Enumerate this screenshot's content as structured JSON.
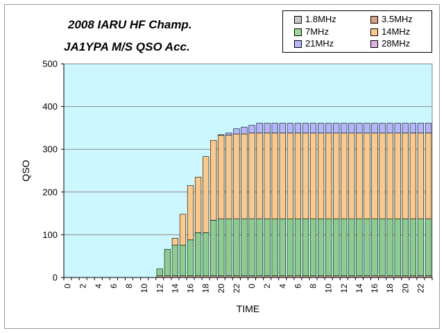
{
  "chart_data": {
    "type": "bar",
    "stacked": true,
    "title": [
      "2008 IARU HF Champ.",
      "JA1YPA  M/S  QSO Acc."
    ],
    "xlabel": "TIME",
    "ylabel": "QSO",
    "ylim": [
      0,
      500
    ],
    "yticks": [
      0,
      100,
      200,
      300,
      400,
      500
    ],
    "grid": true,
    "legend_position": "top-right",
    "categories": [
      "0",
      "1",
      "2",
      "3",
      "4",
      "5",
      "6",
      "7",
      "8",
      "9",
      "10",
      "11",
      "12",
      "13",
      "14",
      "15",
      "16",
      "17",
      "18",
      "19",
      "20",
      "21",
      "22",
      "23",
      "0",
      "1",
      "2",
      "3",
      "4",
      "5",
      "6",
      "7",
      "8",
      "9",
      "10",
      "11",
      "12",
      "13",
      "14",
      "15",
      "16",
      "17",
      "18",
      "19",
      "20",
      "21",
      "22",
      "23"
    ],
    "xtick_labels": [
      "0",
      "",
      "2",
      "",
      "4",
      "",
      "6",
      "",
      "8",
      "",
      "10",
      "",
      "12",
      "",
      "14",
      "",
      "16",
      "",
      "18",
      "",
      "20",
      "",
      "22",
      "",
      "0",
      "",
      "2",
      "",
      "4",
      "",
      "6",
      "",
      "8",
      "",
      "10",
      "",
      "12",
      "",
      "14",
      "",
      "16",
      "",
      "18",
      "",
      "20",
      "",
      "22",
      ""
    ],
    "series": [
      {
        "name": "1.8MHz",
        "color": "#c8c8c8",
        "values": [
          0,
          0,
          0,
          0,
          0,
          0,
          0,
          0,
          0,
          0,
          0,
          0,
          0,
          0,
          0,
          0,
          0,
          0,
          0,
          0,
          0,
          0,
          0,
          0,
          0,
          0,
          0,
          0,
          0,
          0,
          0,
          0,
          0,
          0,
          0,
          0,
          0,
          0,
          0,
          0,
          0,
          0,
          0,
          0,
          0,
          0,
          0,
          0
        ]
      },
      {
        "name": "3.5MHz",
        "color": "#d9a183",
        "values": [
          0,
          0,
          0,
          0,
          0,
          0,
          0,
          0,
          0,
          0,
          0,
          0,
          4,
          4,
          4,
          4,
          4,
          4,
          4,
          4,
          4,
          4,
          4,
          4,
          4,
          4,
          4,
          4,
          4,
          4,
          4,
          4,
          4,
          4,
          4,
          4,
          4,
          4,
          4,
          4,
          4,
          4,
          4,
          4,
          4,
          4,
          4,
          4
        ]
      },
      {
        "name": "7MHz",
        "color": "#98d898",
        "values": [
          0,
          0,
          0,
          0,
          0,
          0,
          0,
          0,
          0,
          0,
          0,
          0,
          16,
          62,
          72,
          72,
          84,
          101,
          101,
          130,
          133,
          133,
          133,
          133,
          133,
          133,
          133,
          133,
          133,
          133,
          133,
          133,
          133,
          133,
          133,
          133,
          133,
          133,
          133,
          133,
          133,
          133,
          133,
          133,
          133,
          133,
          133,
          133
        ]
      },
      {
        "name": "14MHz",
        "color": "#ffc888",
        "values": [
          0,
          0,
          0,
          0,
          0,
          0,
          0,
          0,
          0,
          0,
          0,
          0,
          0,
          0,
          16,
          72,
          127,
          130,
          178,
          187,
          196,
          196,
          199,
          199,
          201,
          201,
          201,
          201,
          201,
          201,
          201,
          201,
          201,
          201,
          201,
          201,
          201,
          201,
          201,
          201,
          201,
          201,
          201,
          201,
          201,
          201,
          201,
          201
        ]
      },
      {
        "name": "21MHz",
        "color": "#b4b4ff",
        "values": [
          0,
          0,
          0,
          0,
          0,
          0,
          0,
          0,
          0,
          0,
          0,
          0,
          0,
          0,
          0,
          0,
          0,
          0,
          0,
          0,
          1,
          5,
          12,
          16,
          18,
          23,
          23,
          23,
          23,
          23,
          23,
          23,
          23,
          23,
          23,
          23,
          23,
          23,
          23,
          23,
          23,
          23,
          23,
          23,
          23,
          23,
          23,
          23
        ]
      },
      {
        "name": "28MHz",
        "color": "#e0b0e0",
        "values": [
          0,
          0,
          0,
          0,
          0,
          0,
          0,
          0,
          0,
          0,
          0,
          0,
          0,
          0,
          0,
          0,
          0,
          0,
          0,
          0,
          0,
          0,
          0,
          0,
          0,
          0,
          0,
          0,
          0,
          0,
          0,
          0,
          0,
          0,
          0,
          0,
          0,
          0,
          0,
          0,
          0,
          0,
          0,
          0,
          0,
          0,
          0,
          0
        ]
      }
    ]
  },
  "colors": {
    "plot_background": "#ccf7ff",
    "gridline": "#8a8a8a"
  }
}
